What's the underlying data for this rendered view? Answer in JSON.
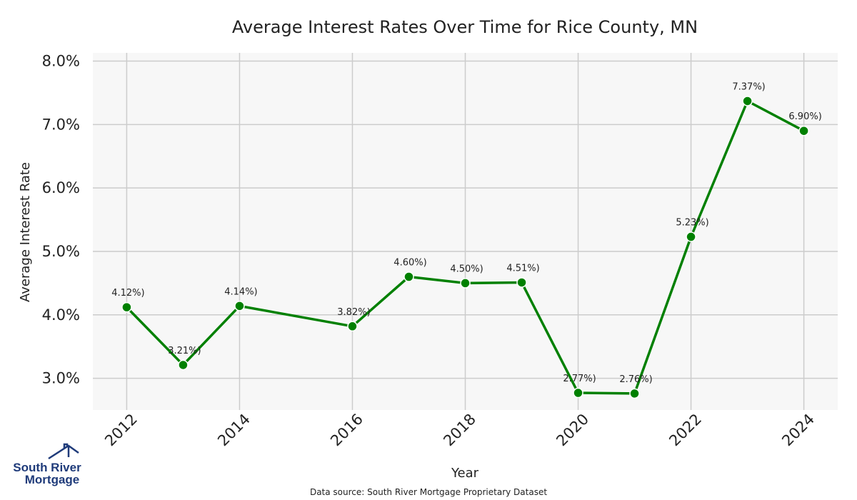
{
  "chart_data": {
    "type": "line",
    "title": "Average Interest Rates Over Time for Rice County, MN",
    "xlabel": "Year",
    "ylabel": "Average Interest Rate",
    "x": [
      2012,
      2013,
      2014,
      2016,
      2017,
      2018,
      2019,
      2020,
      2021,
      2022,
      2023,
      2024
    ],
    "series": [
      {
        "values": [
          4.12,
          3.21,
          4.14,
          3.82,
          4.6,
          4.5,
          4.51,
          2.77,
          2.76,
          5.23,
          7.37,
          6.9
        ],
        "labels": [
          "4.12%)",
          "3.21%)",
          "4.14%)",
          "3.82%)",
          "4.60%)",
          "4.50%)",
          "4.51%)",
          "2.77%)",
          "2.76%)",
          "5.23%)",
          "7.37%)",
          "6.90%)"
        ]
      }
    ],
    "xlim": [
      2011.4,
      2024.6
    ],
    "ylim": [
      2.5,
      8.13
    ],
    "xticks": [
      2012,
      2014,
      2016,
      2018,
      2020,
      2022,
      2024
    ],
    "xtick_labels": [
      "2012",
      "2014",
      "2016",
      "2018",
      "2020",
      "2022",
      "2024"
    ],
    "yticks": [
      3.0,
      4.0,
      5.0,
      6.0,
      7.0,
      8.0
    ],
    "ytick_labels": [
      "3.0%",
      "4.0%",
      "5.0%",
      "6.0%",
      "7.0%",
      "8.0%"
    ],
    "grid": true,
    "line_color": "#008000",
    "marker_color": "#008000",
    "plot_background": "#f7f7f7",
    "grid_color": "#cccccc"
  },
  "source_note": "Data source: South River Mortgage Proprietary Dataset",
  "logo": {
    "line1": "South River",
    "line2": "Mortgage",
    "icon": "house-icon",
    "color": "#1f3b7a"
  }
}
